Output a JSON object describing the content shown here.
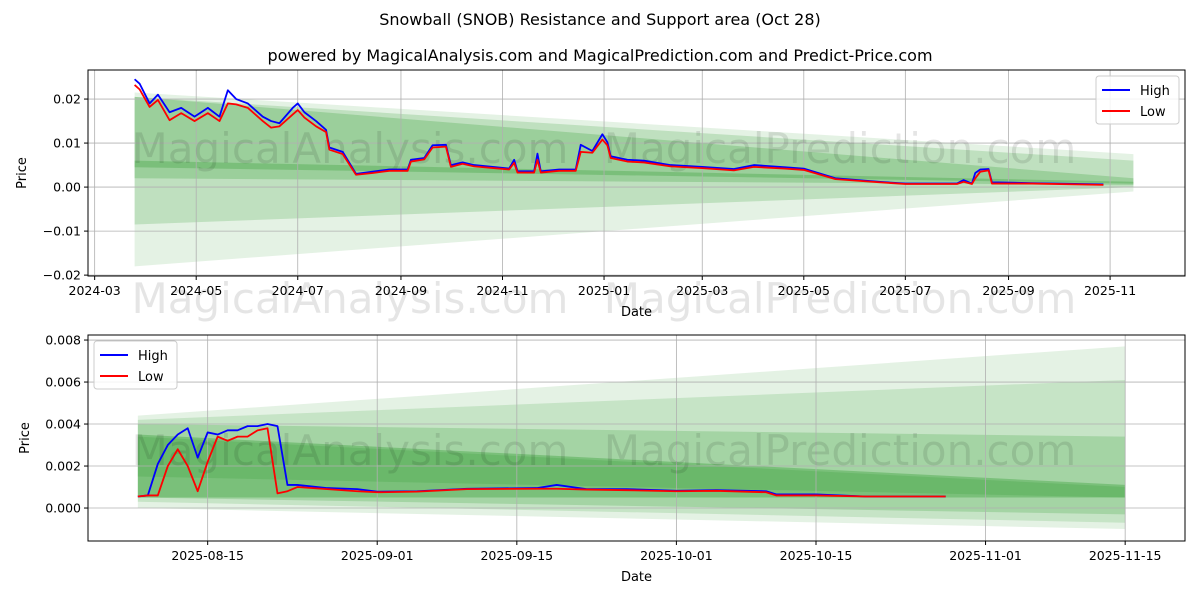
{
  "title": "Snowball (SNOB) Resistance and Support area (Oct 28)",
  "subtitle": "powered by MagicalAnalysis.com and MagicalPrediction.com and Predict-Price.com",
  "watermarks": [
    "MagicalAnalysis.com",
    "MagicalPrediction.com"
  ],
  "colors": {
    "high": "#0000ff",
    "low": "#ff0000",
    "band": "#2e9a2e"
  },
  "chart_data": [
    {
      "type": "line",
      "xlabel": "Date",
      "ylabel": "Price",
      "xlim": [
        "2024-02-26",
        "2025-12-16"
      ],
      "ylim": [
        -0.0202,
        0.0266
      ],
      "grid": true,
      "legend": {
        "placement": "top-right",
        "entries": [
          "High",
          "Low"
        ]
      },
      "xticks": [
        "2024-03-01",
        "2024-05-01",
        "2024-07-01",
        "2024-09-01",
        "2024-11-01",
        "2025-01-01",
        "2025-03-01",
        "2025-05-01",
        "2025-07-01",
        "2025-09-01",
        "2025-11-01"
      ],
      "xtick_labels": [
        "2024-03",
        "2024-05",
        "2024-07",
        "2024-09",
        "2024-11",
        "2025-01",
        "2025-03",
        "2025-05",
        "2025-07",
        "2025-09",
        "2025-11"
      ],
      "yticks": [
        -0.02,
        -0.01,
        0.0,
        0.01,
        0.02
      ],
      "ytick_labels": [
        "−0.02",
        "−0.01",
        "0.00",
        "0.01",
        "0.02"
      ],
      "bands": [
        {
          "x": [
            "2024-03-25",
            "2025-11-15"
          ],
          "start": [
            -0.018,
            0.0215
          ],
          "end": [
            -0.001,
            0.0075
          ],
          "opacity": 0.13
        },
        {
          "x": [
            "2024-03-25",
            "2025-11-15"
          ],
          "start": [
            -0.0085,
            0.0205
          ],
          "end": [
            0.0,
            0.006
          ],
          "opacity": 0.2
        },
        {
          "x": [
            "2024-03-25",
            "2025-11-15"
          ],
          "start": [
            0.002,
            0.0205
          ],
          "end": [
            0.0005,
            0.002
          ],
          "opacity": 0.25
        },
        {
          "x": [
            "2024-03-25",
            "2025-11-15"
          ],
          "start": [
            0.0045,
            0.006
          ],
          "end": [
            0.0008,
            0.0012
          ],
          "opacity": 0.3
        }
      ],
      "x": [
        "2024-03-25",
        "2024-03-28",
        "2024-04-03",
        "2024-04-08",
        "2024-04-15",
        "2024-04-22",
        "2024-04-30",
        "2024-05-08",
        "2024-05-15",
        "2024-05-20",
        "2024-05-25",
        "2024-06-01",
        "2024-06-10",
        "2024-06-15",
        "2024-06-20",
        "2024-06-28",
        "2024-07-01",
        "2024-07-05",
        "2024-07-12",
        "2024-07-18",
        "2024-07-20",
        "2024-07-28",
        "2024-08-05",
        "2024-08-15",
        "2024-08-25",
        "2024-09-05",
        "2024-09-07",
        "2024-09-15",
        "2024-09-20",
        "2024-09-28",
        "2024-10-01",
        "2024-10-08",
        "2024-10-15",
        "2024-11-05",
        "2024-11-08",
        "2024-11-10",
        "2024-11-20",
        "2024-11-22",
        "2024-11-24",
        "2024-12-05",
        "2024-12-15",
        "2024-12-18",
        "2024-12-25",
        "2024-12-31",
        "2025-01-03",
        "2025-01-05",
        "2025-01-15",
        "2025-01-25",
        "2025-02-10",
        "2025-03-01",
        "2025-03-20",
        "2025-04-01",
        "2025-04-20",
        "2025-05-01",
        "2025-05-20",
        "2025-06-15",
        "2025-07-01",
        "2025-08-01",
        "2025-08-05",
        "2025-08-10",
        "2025-08-12",
        "2025-08-15",
        "2025-08-20",
        "2025-08-22",
        "2025-09-15",
        "2025-10-28"
      ],
      "series": [
        {
          "name": "High",
          "values": [
            0.0245,
            0.0235,
            0.019,
            0.021,
            0.017,
            0.018,
            0.016,
            0.018,
            0.016,
            0.022,
            0.02,
            0.019,
            0.016,
            0.015,
            0.0145,
            0.018,
            0.019,
            0.017,
            0.015,
            0.013,
            0.009,
            0.008,
            0.003,
            0.0035,
            0.004,
            0.004,
            0.0062,
            0.0066,
            0.0095,
            0.0096,
            0.005,
            0.0056,
            0.005,
            0.0042,
            0.0062,
            0.0036,
            0.0036,
            0.0076,
            0.0036,
            0.004,
            0.004,
            0.0096,
            0.0082,
            0.012,
            0.0102,
            0.007,
            0.0062,
            0.006,
            0.005,
            0.0046,
            0.0041,
            0.005,
            0.0045,
            0.0042,
            0.002,
            0.0012,
            0.0008,
            0.0008,
            0.0016,
            0.0008,
            0.0032,
            0.004,
            0.0041,
            0.0011,
            0.0009,
            0.0006
          ]
        },
        {
          "name": "Low",
          "values": [
            0.0232,
            0.0222,
            0.0182,
            0.0198,
            0.0152,
            0.0168,
            0.015,
            0.0168,
            0.015,
            0.019,
            0.0188,
            0.018,
            0.015,
            0.0135,
            0.0138,
            0.0165,
            0.0175,
            0.0158,
            0.0138,
            0.0125,
            0.0085,
            0.0075,
            0.0028,
            0.0032,
            0.0037,
            0.0037,
            0.0058,
            0.0063,
            0.009,
            0.0092,
            0.0046,
            0.0053,
            0.0047,
            0.004,
            0.0055,
            0.0033,
            0.0033,
            0.0062,
            0.0033,
            0.0037,
            0.0037,
            0.008,
            0.0078,
            0.0108,
            0.0095,
            0.0066,
            0.0058,
            0.0056,
            0.0047,
            0.0043,
            0.0038,
            0.0046,
            0.0042,
            0.0039,
            0.0018,
            0.0011,
            0.0007,
            0.0007,
            0.0012,
            0.0007,
            0.002,
            0.0035,
            0.0038,
            0.0008,
            0.0008,
            0.0005
          ]
        }
      ]
    },
    {
      "type": "line",
      "xlabel": "Date",
      "ylabel": "Price",
      "xlim": [
        "2025-08-03",
        "2025-11-21"
      ],
      "ylim": [
        -0.00157,
        0.00824
      ],
      "grid": true,
      "legend": {
        "placement": "top-left",
        "entries": [
          "High",
          "Low"
        ]
      },
      "xticks": [
        "2025-08-15",
        "2025-09-01",
        "2025-09-15",
        "2025-10-01",
        "2025-10-15",
        "2025-11-01",
        "2025-11-15"
      ],
      "xtick_labels": [
        "2025-08-15",
        "2025-09-01",
        "2025-09-15",
        "2025-10-01",
        "2025-10-15",
        "2025-11-01",
        "2025-11-15"
      ],
      "yticks": [
        0.0,
        0.002,
        0.004,
        0.006,
        0.008
      ],
      "ytick_labels": [
        "0.000",
        "0.002",
        "0.004",
        "0.006",
        "0.008"
      ],
      "bands": [
        {
          "x": [
            "2025-08-08",
            "2025-11-15"
          ],
          "start": [
            0.0,
            0.0044
          ],
          "end": [
            -0.001,
            0.0077
          ],
          "opacity": 0.13
        },
        {
          "x": [
            "2025-08-08",
            "2025-11-15"
          ],
          "start": [
            0.0003,
            0.0042
          ],
          "end": [
            -0.0007,
            0.0061
          ],
          "opacity": 0.16
        },
        {
          "x": [
            "2025-08-08",
            "2025-11-15"
          ],
          "start": [
            0.0005,
            0.004
          ],
          "end": [
            -0.0003,
            0.0034
          ],
          "opacity": 0.22
        },
        {
          "x": [
            "2025-08-08",
            "2025-11-15"
          ],
          "start": [
            0.0005,
            0.0035
          ],
          "end": [
            0.0005,
            0.0011
          ],
          "opacity": 0.35
        },
        {
          "x": [
            "2025-08-08",
            "2025-11-15"
          ],
          "start": [
            0.0015,
            0.0034
          ],
          "end": [
            0.0005,
            0.001
          ],
          "opacity": 0.2
        }
      ],
      "x": [
        "2025-08-08",
        "2025-08-09",
        "2025-08-10",
        "2025-08-11",
        "2025-08-12",
        "2025-08-13",
        "2025-08-14",
        "2025-08-15",
        "2025-08-16",
        "2025-08-17",
        "2025-08-18",
        "2025-08-19",
        "2025-08-20",
        "2025-08-21",
        "2025-08-22",
        "2025-08-23",
        "2025-08-24",
        "2025-08-27",
        "2025-08-30",
        "2025-09-01",
        "2025-09-05",
        "2025-09-10",
        "2025-09-17",
        "2025-09-19",
        "2025-09-22",
        "2025-09-26",
        "2025-10-01",
        "2025-10-05",
        "2025-10-10",
        "2025-10-11",
        "2025-10-15",
        "2025-10-20",
        "2025-10-28"
      ],
      "series": [
        {
          "name": "High",
          "values": [
            0.00055,
            0.0006,
            0.0021,
            0.003,
            0.0035,
            0.0038,
            0.0024,
            0.0036,
            0.0035,
            0.0037,
            0.0037,
            0.0039,
            0.0039,
            0.004,
            0.0039,
            0.0011,
            0.0011,
            0.00095,
            0.0009,
            0.00078,
            0.0008,
            0.00092,
            0.00095,
            0.0011,
            0.0009,
            0.0009,
            0.00082,
            0.00085,
            0.0008,
            0.00065,
            0.00065,
            0.00055,
            0.00055
          ]
        },
        {
          "name": "Low",
          "values": [
            0.00055,
            0.0006,
            0.0006,
            0.002,
            0.0028,
            0.002,
            0.0008,
            0.0022,
            0.0034,
            0.0032,
            0.0034,
            0.0034,
            0.0037,
            0.0038,
            0.0007,
            0.0008,
            0.001,
            0.0009,
            0.0008,
            0.00075,
            0.00078,
            0.0009,
            0.00092,
            0.00092,
            0.00088,
            0.00085,
            0.0008,
            0.00082,
            0.00075,
            0.0006,
            0.0006,
            0.00055,
            0.00055
          ]
        }
      ]
    }
  ]
}
